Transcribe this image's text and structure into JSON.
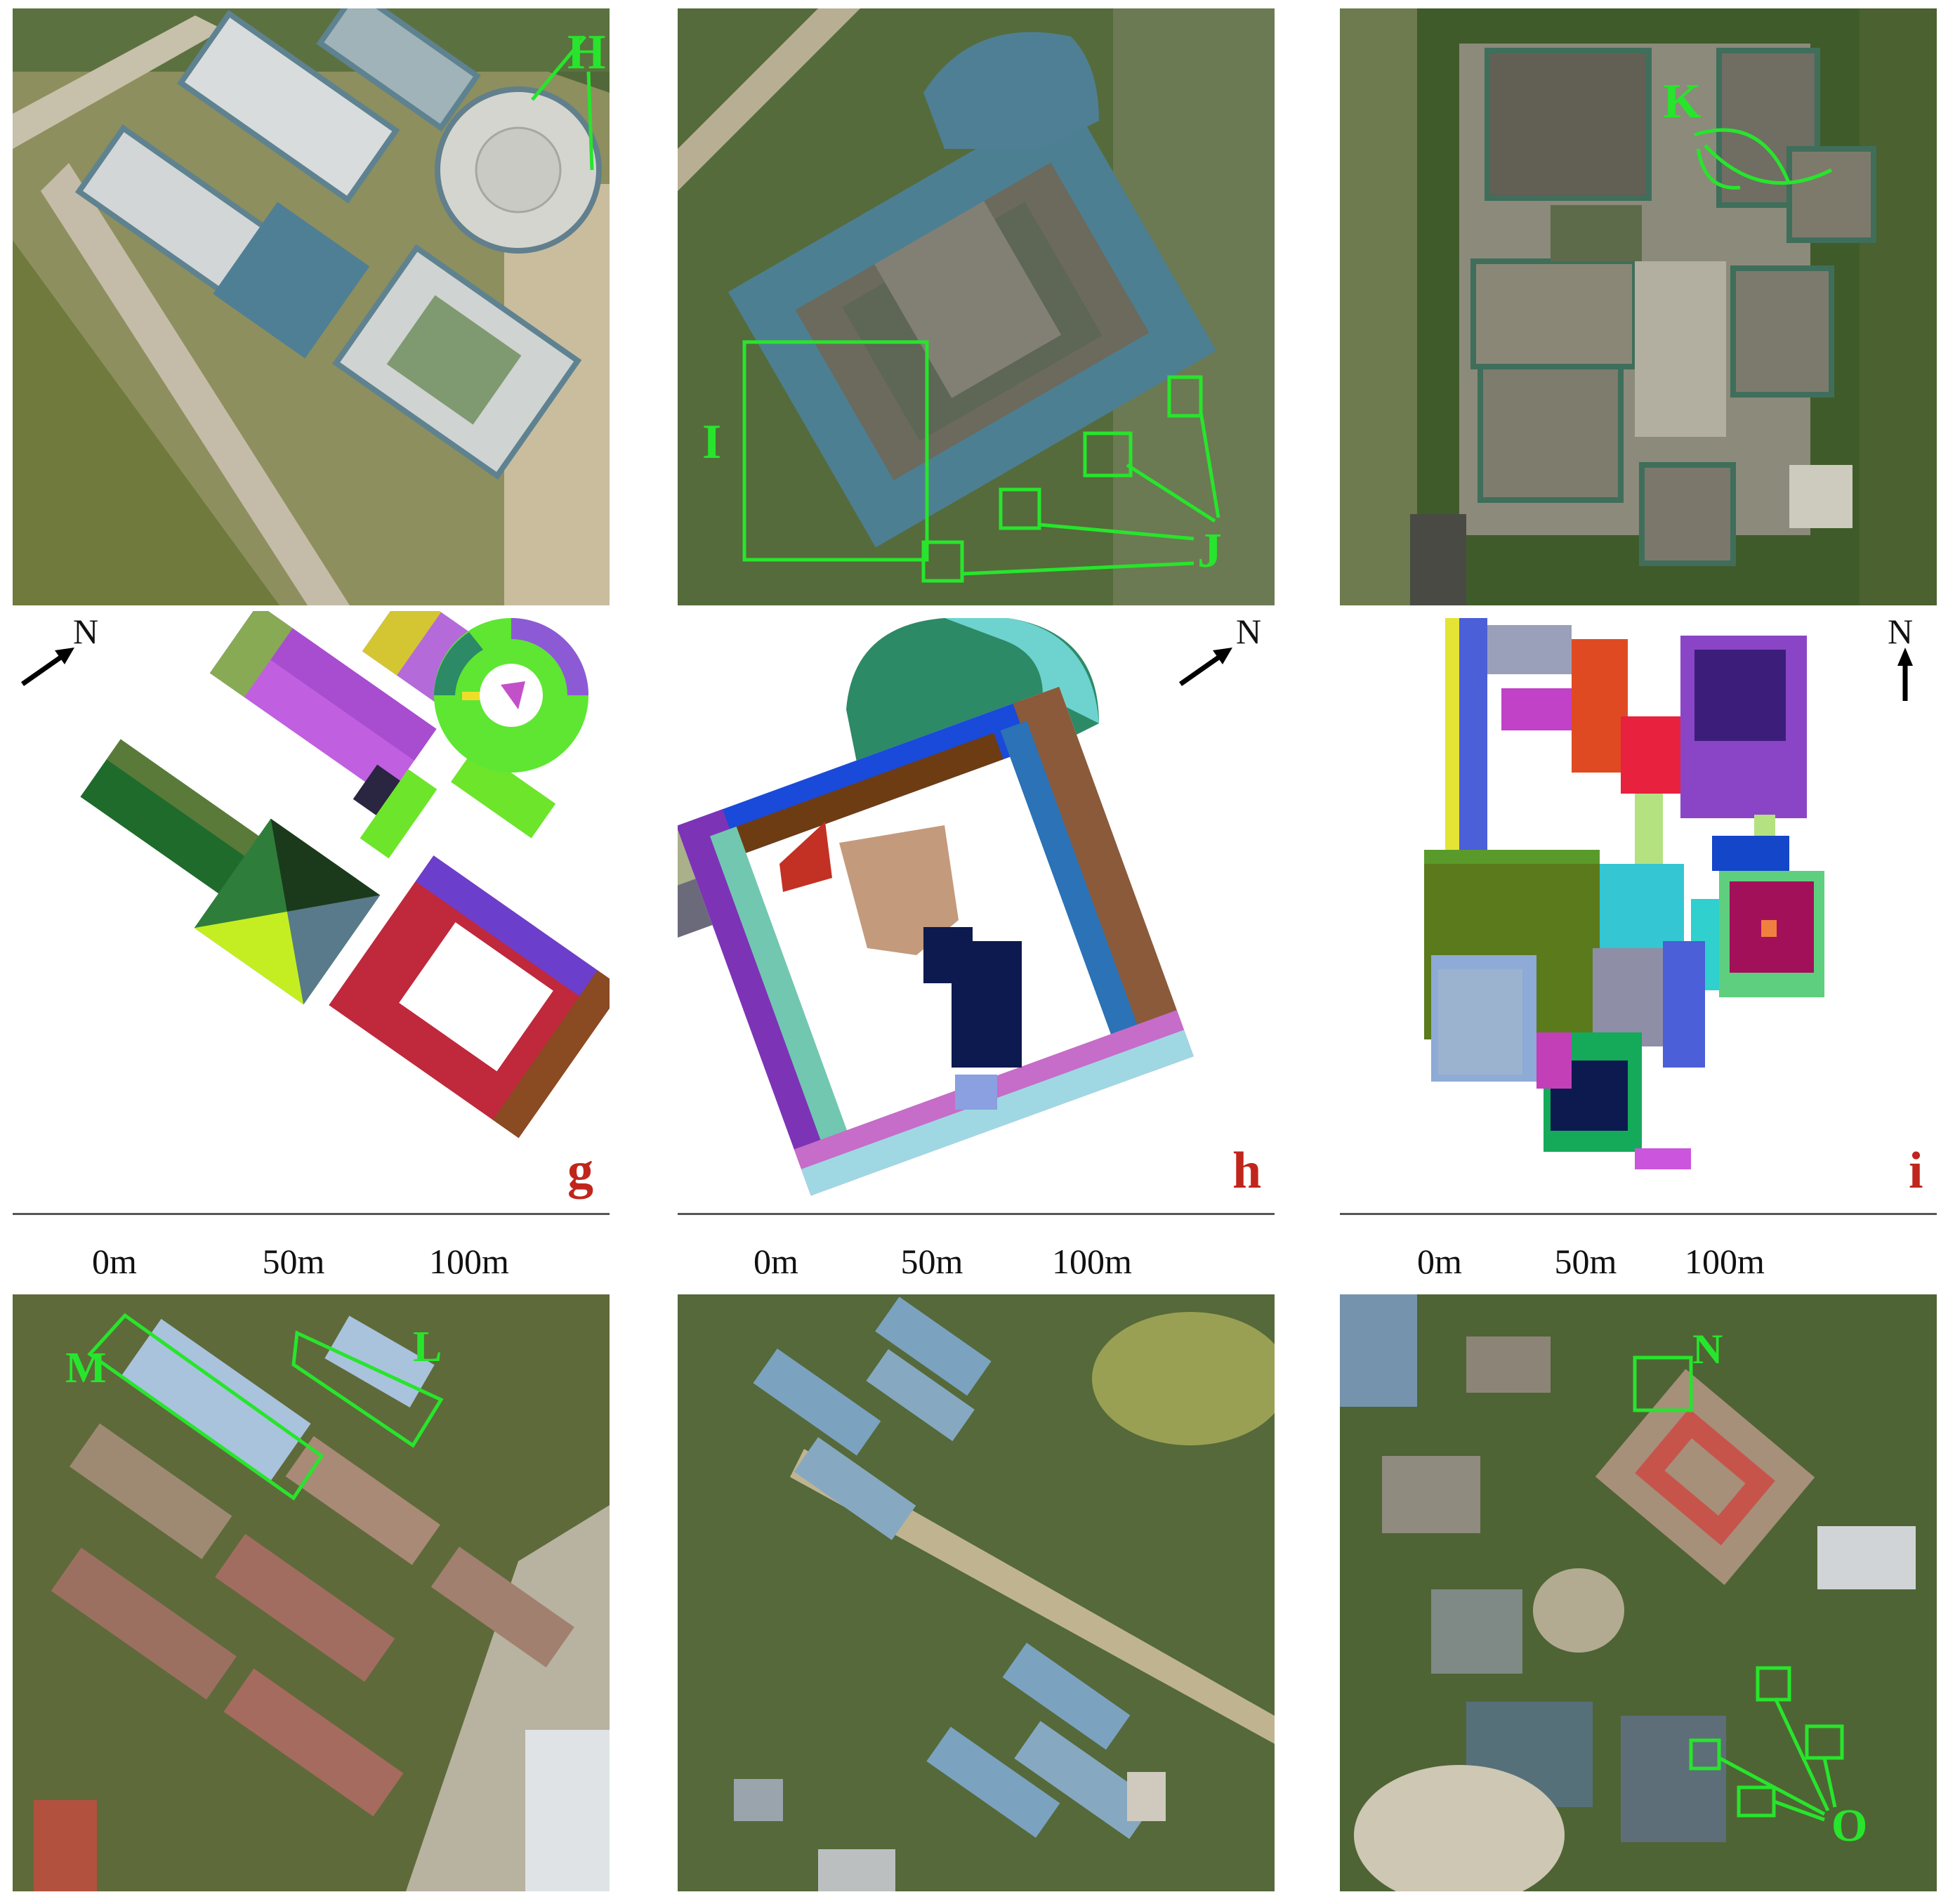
{
  "north_label": "N",
  "scale_ticks": [
    "0m",
    "50m",
    "100m"
  ],
  "panels": {
    "g": {
      "letter": "g"
    },
    "h": {
      "letter": "h"
    },
    "i": {
      "letter": "i"
    }
  },
  "annotations": {
    "top_left": [
      "H"
    ],
    "top_middle": [
      "I",
      "J"
    ],
    "top_right": [
      "K"
    ],
    "bottom_left": [
      "M",
      "L"
    ],
    "bottom_right": [
      "N",
      "O"
    ]
  },
  "colors": {
    "annotation_green": "#27e52c",
    "panel_letter_red": "#c0261c"
  }
}
